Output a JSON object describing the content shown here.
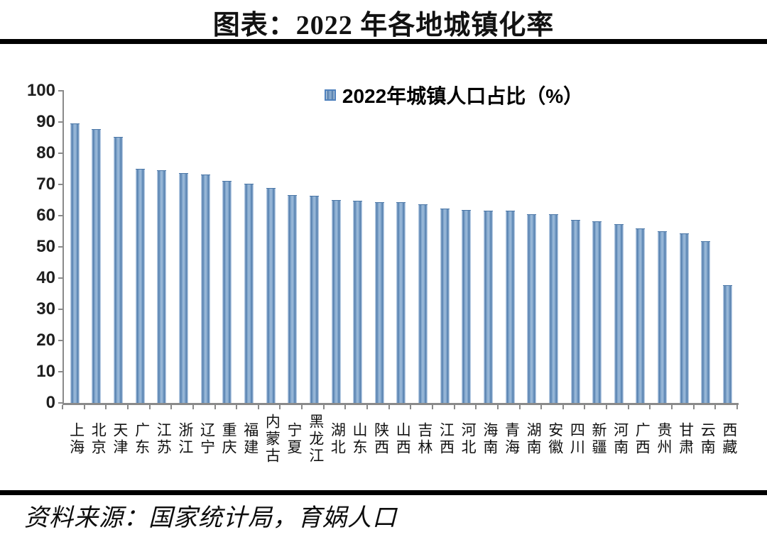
{
  "title": "图表：2022 年各地城镇化率",
  "legend": {
    "label": "2022年城镇人口占比（%）",
    "marker_color": "#7da7cd",
    "marker_border": "#4f81bd"
  },
  "source_note": "资料来源：国家统计局，育娲人口",
  "colors": {
    "bar_main": "#7fa5cc",
    "bar_dark": "#527cab",
    "bar_light": "#c7d8e9",
    "axis": "#8a8a8a",
    "divider": "#000000",
    "text": "#121212"
  },
  "chart_data": {
    "type": "bar",
    "title": "2022年城镇人口占比（%）",
    "xlabel": "",
    "ylabel": "",
    "ylim": [
      0,
      100
    ],
    "yticks": [
      0,
      10,
      20,
      30,
      40,
      50,
      60,
      70,
      80,
      90,
      100
    ],
    "grid": false,
    "legend_position": "top-center",
    "categories": [
      "上海",
      "北京",
      "天津",
      "广东",
      "江苏",
      "浙江",
      "辽宁",
      "重庆",
      "福建",
      "内蒙古",
      "宁夏",
      "黑龙江",
      "湖北",
      "山东",
      "陕西",
      "山西",
      "吉林",
      "江西",
      "河北",
      "海南",
      "青海",
      "湖南",
      "安徽",
      "四川",
      "新疆",
      "河南",
      "广西",
      "贵州",
      "甘肃",
      "云南",
      "西藏"
    ],
    "values": [
      89.3,
      87.5,
      85.1,
      74.8,
      74.4,
      73.4,
      73.0,
      71.0,
      70.1,
      68.6,
      66.3,
      66.2,
      64.7,
      64.5,
      64.0,
      64.0,
      63.4,
      62.1,
      61.7,
      61.4,
      61.3,
      60.3,
      60.2,
      58.4,
      57.9,
      57.1,
      55.7,
      54.8,
      54.2,
      51.7,
      37.4
    ]
  }
}
